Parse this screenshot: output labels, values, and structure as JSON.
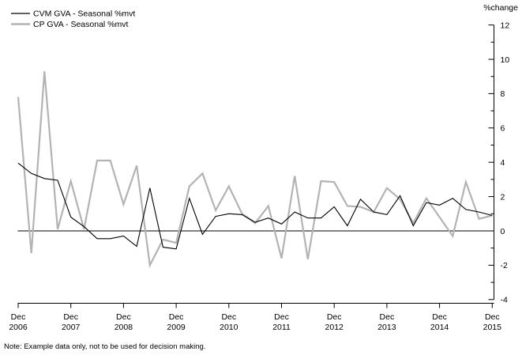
{
  "chart_data": {
    "type": "line",
    "title": "",
    "xlabel": "",
    "ylabel": "%change",
    "ylim": [
      -4,
      12
    ],
    "grid": false,
    "legend_position": "top-left",
    "zero_line": true,
    "frequency": "quarterly",
    "x_start": "Dec 2006",
    "x_end": "Dec 2015",
    "x_tick_labels": [
      {
        "top": "Dec",
        "bottom": "2006"
      },
      {
        "top": "Dec",
        "bottom": "2007"
      },
      {
        "top": "Dec",
        "bottom": "2008"
      },
      {
        "top": "Dec",
        "bottom": "2009"
      },
      {
        "top": "Dec",
        "bottom": "2010"
      },
      {
        "top": "Dec",
        "bottom": "2011"
      },
      {
        "top": "Dec",
        "bottom": "2012"
      },
      {
        "top": "Dec",
        "bottom": "2013"
      },
      {
        "top": "Dec",
        "bottom": "2014"
      },
      {
        "top": "Dec",
        "bottom": "2015"
      }
    ],
    "y_major_ticks": [
      12,
      10,
      8,
      6,
      4,
      2,
      0,
      -2,
      -4
    ],
    "y_minor_ticks": [
      11,
      9,
      7,
      5,
      3,
      1,
      -1,
      -3
    ],
    "series": [
      {
        "name": "CVM GVA - Seasonal %mvt",
        "color": "#000000",
        "width": 1.1,
        "values": [
          3.95,
          3.35,
          3.05,
          2.95,
          0.8,
          0.25,
          -0.45,
          -0.45,
          -0.3,
          -0.9,
          2.5,
          -0.95,
          -1.05,
          1.9,
          -0.2,
          0.85,
          1.0,
          0.95,
          0.5,
          0.75,
          0.4,
          1.1,
          0.75,
          0.75,
          1.4,
          0.3,
          1.85,
          1.1,
          0.95,
          2.05,
          0.3,
          1.65,
          1.5,
          1.9,
          1.25,
          1.1,
          0.9
        ]
      },
      {
        "name": "CP GVA - Seasonal %mvt",
        "color": "#b3b3b3",
        "width": 2.2,
        "values": [
          7.8,
          -1.3,
          9.3,
          0.1,
          2.9,
          0.1,
          4.1,
          4.1,
          1.55,
          3.8,
          -2.0,
          -0.5,
          -0.7,
          2.6,
          3.35,
          1.2,
          2.6,
          1.0,
          0.45,
          1.45,
          -1.6,
          3.2,
          -1.65,
          2.9,
          2.85,
          1.45,
          1.4,
          1.1,
          2.5,
          1.85,
          0.45,
          1.9,
          0.8,
          -0.3,
          2.85,
          0.7,
          0.9
        ]
      }
    ],
    "note": "Note: Example data only, not to be used for decision making."
  }
}
